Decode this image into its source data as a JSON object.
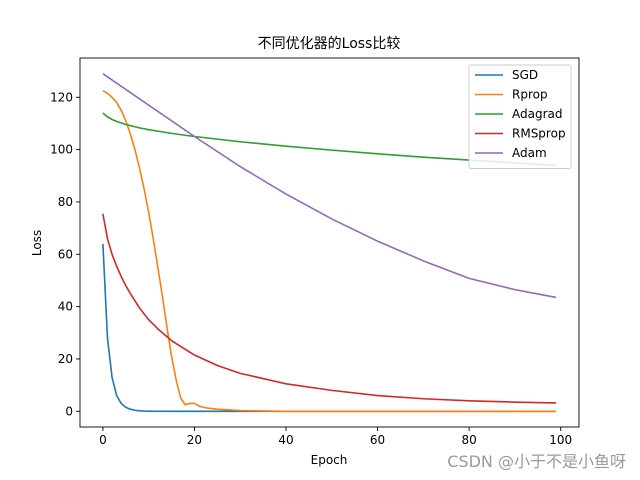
{
  "chart_data": {
    "type": "line",
    "title": "不同优化器的Loss比较",
    "xlabel": "Epoch",
    "ylabel": "Loss",
    "xlim": [
      -5,
      104
    ],
    "ylim": [
      -6,
      135
    ],
    "xticks": [
      0,
      20,
      40,
      60,
      80,
      100
    ],
    "yticks": [
      0,
      20,
      40,
      60,
      80,
      100,
      120
    ],
    "grid": false,
    "legend_position": "top-right",
    "series": [
      {
        "name": "SGD",
        "color": "#1f77b4",
        "x": [
          0,
          1,
          2,
          3,
          4,
          5,
          6,
          7,
          8,
          9,
          10,
          12,
          15,
          20,
          30,
          40,
          60,
          80,
          99
        ],
        "y": [
          64,
          28,
          13,
          6,
          3,
          1.5,
          0.8,
          0.4,
          0.2,
          0.1,
          0.05,
          0.02,
          0,
          0,
          0,
          0,
          0,
          0,
          0
        ]
      },
      {
        "name": "Rprop",
        "color": "#ff7f0e",
        "x": [
          0,
          1,
          2,
          3,
          4,
          5,
          6,
          7,
          8,
          9,
          10,
          11,
          12,
          13,
          14,
          15,
          16,
          17,
          18,
          19,
          20,
          21,
          22,
          23,
          25,
          30,
          40,
          60,
          80,
          99
        ],
        "y": [
          122.5,
          121.5,
          120,
          118,
          115,
          111,
          106,
          100,
          93,
          85,
          76,
          66,
          55,
          44,
          32,
          21,
          12,
          5,
          2.5,
          3,
          3,
          2,
          1.5,
          1.2,
          0.8,
          0.3,
          0,
          0,
          0,
          0
        ]
      },
      {
        "name": "Adagrad",
        "color": "#2ca02c",
        "x": [
          0,
          1,
          2,
          3,
          5,
          8,
          10,
          15,
          20,
          30,
          40,
          50,
          60,
          70,
          80,
          90,
          99
        ],
        "y": [
          114,
          112.5,
          111.5,
          110.8,
          109.6,
          108.3,
          107.6,
          106.2,
          105,
          103,
          101.3,
          99.8,
          98.4,
          97.1,
          96,
          94.9,
          94
        ]
      },
      {
        "name": "RMSprop",
        "color": "#d62728",
        "x": [
          0,
          1,
          2,
          3,
          4,
          5,
          6,
          8,
          10,
          12,
          15,
          20,
          25,
          30,
          40,
          50,
          60,
          70,
          80,
          90,
          99
        ],
        "y": [
          75.5,
          66,
          60,
          55.5,
          51.5,
          48,
          45,
          39.5,
          35,
          31.5,
          27,
          21.5,
          17.5,
          14.5,
          10.5,
          8,
          6,
          4.8,
          4,
          3.5,
          3.2
        ]
      },
      {
        "name": "Adam",
        "color": "#9467bd",
        "x": [
          0,
          10,
          20,
          30,
          40,
          50,
          60,
          70,
          80,
          90,
          99
        ],
        "y": [
          129,
          117,
          105,
          93.5,
          83,
          73.5,
          65,
          57.5,
          50.8,
          46.5,
          43.5
        ]
      }
    ]
  },
  "watermark": "CSDN @小于不是小鱼呀"
}
